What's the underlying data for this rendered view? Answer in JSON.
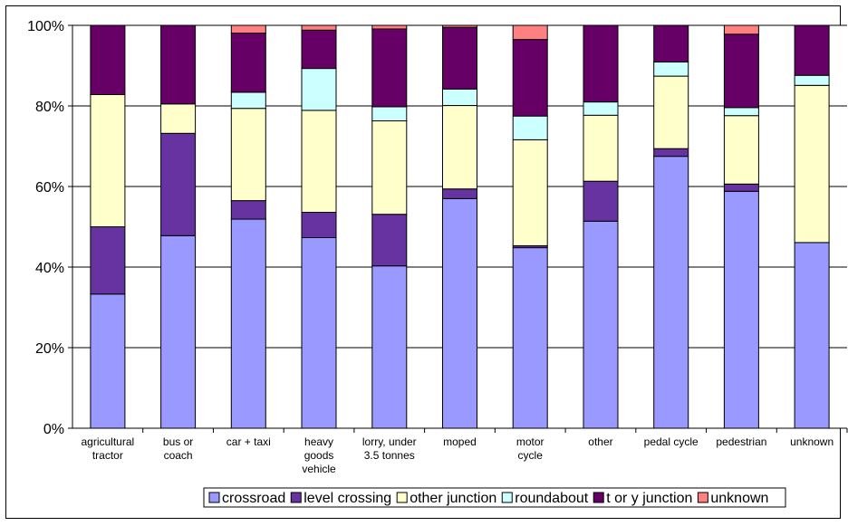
{
  "chart_data": {
    "type": "bar",
    "stacked": true,
    "percent": true,
    "categories": [
      "agricultural tractor",
      "bus or coach",
      "car + taxi",
      "heavy goods vehicle",
      "lorry, under 3.5 tonnes",
      "moped",
      "motor cycle",
      "other",
      "pedal cycle",
      "pedestrian",
      "unknown"
    ],
    "category_lines": [
      [
        "agricultural",
        "tractor"
      ],
      [
        "bus or",
        "coach"
      ],
      [
        "car + taxi"
      ],
      [
        "heavy",
        "goods",
        "vehicle"
      ],
      [
        "lorry, under",
        "3.5 tonnes"
      ],
      [
        "moped"
      ],
      [
        "motor",
        "cycle"
      ],
      [
        "other"
      ],
      [
        "pedal cycle"
      ],
      [
        "pedestrian"
      ],
      [
        "unknown"
      ]
    ],
    "series": [
      {
        "name": "crossroad",
        "color": "#9999ff",
        "values": [
          33.3,
          47.8,
          51.9,
          47.3,
          40.3,
          57.0,
          44.8,
          51.4,
          67.5,
          58.8,
          46.1
        ]
      },
      {
        "name": "level crossing",
        "color": "#6633a0",
        "values": [
          16.7,
          25.4,
          4.6,
          6.3,
          12.8,
          2.4,
          0.5,
          9.9,
          1.9,
          1.8,
          0.0
        ]
      },
      {
        "name": "other junction",
        "color": "#ffffcc",
        "values": [
          32.8,
          7.3,
          22.9,
          25.3,
          23.2,
          20.7,
          26.3,
          16.4,
          18.0,
          17.0,
          39.0
        ]
      },
      {
        "name": "roundabout",
        "color": "#ccffff",
        "values": [
          0.0,
          0.0,
          4.0,
          10.4,
          3.5,
          4.1,
          5.9,
          3.3,
          3.5,
          2.0,
          2.5
        ]
      },
      {
        "name": "t or y junction",
        "color": "#660066",
        "values": [
          17.2,
          19.5,
          14.7,
          9.5,
          19.3,
          15.3,
          19.0,
          19.0,
          9.1,
          18.2,
          12.4
        ]
      },
      {
        "name": "unknown",
        "color": "#ff8080",
        "values": [
          0.0,
          0.0,
          1.9,
          1.2,
          0.9,
          0.5,
          3.5,
          0.0,
          0.0,
          2.2,
          0.0
        ]
      }
    ],
    "y_ticks": [
      "0%",
      "20%",
      "40%",
      "60%",
      "80%",
      "100%"
    ],
    "ylim": [
      0,
      100
    ],
    "grid": true,
    "legend_position": "bottom"
  }
}
